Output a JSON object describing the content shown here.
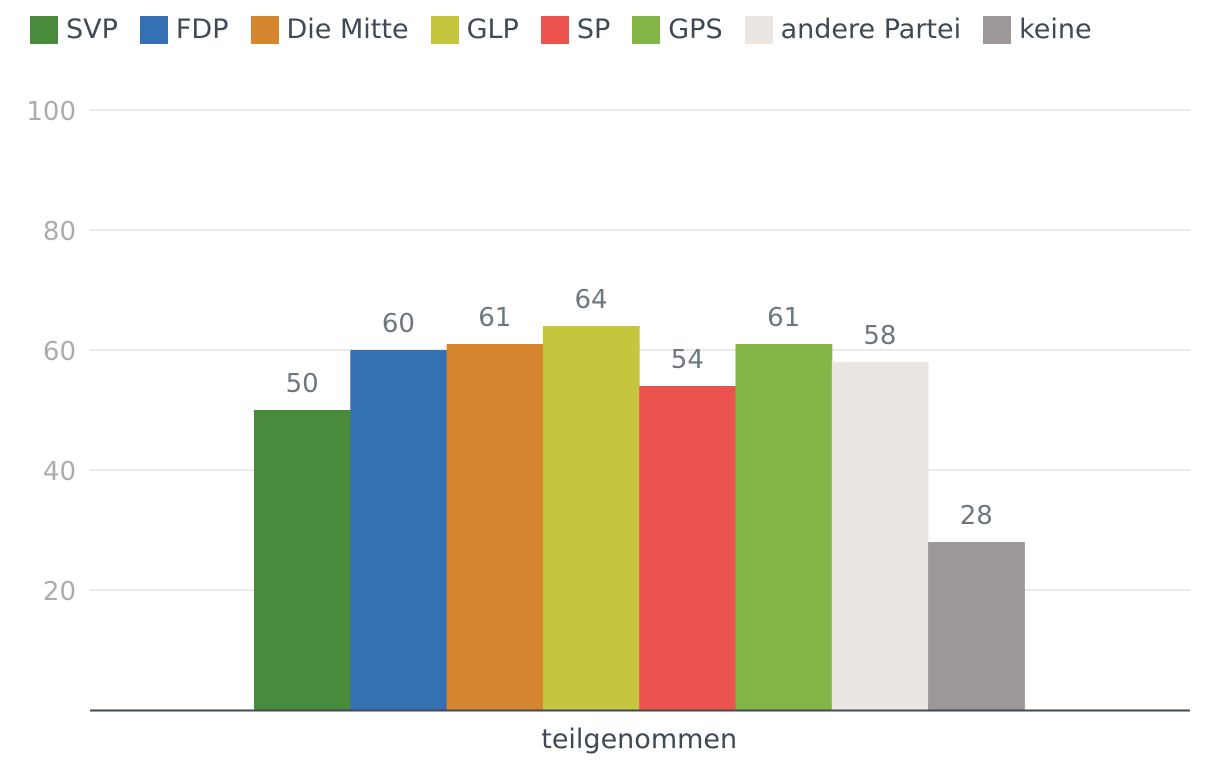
{
  "chart_data": {
    "type": "bar",
    "title": "",
    "xlabel": "",
    "ylabel": "",
    "ylim": [
      0,
      100
    ],
    "yticks": [
      20,
      40,
      60,
      80,
      100
    ],
    "grid": true,
    "categories": [
      "teilgenommen"
    ],
    "series": [
      {
        "name": "SVP",
        "values": [
          50
        ],
        "color": "#4a8a3c"
      },
      {
        "name": "FDP",
        "values": [
          60
        ],
        "color": "#3570b2"
      },
      {
        "name": "Die Mitte",
        "values": [
          61
        ],
        "color": "#d5862e"
      },
      {
        "name": "GLP",
        "values": [
          64
        ],
        "color": "#c5c53e"
      },
      {
        "name": "SP",
        "values": [
          54
        ],
        "color": "#ec534e"
      },
      {
        "name": "GPS",
        "values": [
          61
        ],
        "color": "#83b547"
      },
      {
        "name": "andere Partei",
        "values": [
          58
        ],
        "color": "#ebe6e2"
      },
      {
        "name": "keine",
        "values": [
          28
        ],
        "color": "#9d9798"
      }
    ],
    "legend_position": "top-left"
  },
  "colors": {
    "axis_text": "#a9adb1",
    "label_text": "#6e7680",
    "category_text": "#3f4a56",
    "grid": "#e3e3e3",
    "axis_line": "#3f4a56"
  }
}
